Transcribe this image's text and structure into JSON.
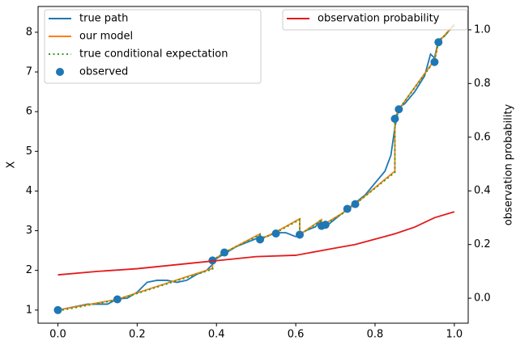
{
  "chart_data": {
    "type": "line",
    "ylabel": "X",
    "y2label": "observation probability",
    "xlim": [
      -0.05,
      1.035
    ],
    "ylim": [
      0.67,
      8.65
    ],
    "y2lim": [
      -0.093,
      1.087
    ],
    "xticks": [
      {
        "value": 0,
        "label": "0.0"
      },
      {
        "value": 0.2,
        "label": "0.2"
      },
      {
        "value": 0.4,
        "label": "0.4"
      },
      {
        "value": 0.6,
        "label": "0.6"
      },
      {
        "value": 0.8,
        "label": "0.8"
      },
      {
        "value": 1,
        "label": "1.0"
      }
    ],
    "yticks": [
      1,
      2,
      3,
      4,
      5,
      6,
      7,
      8
    ],
    "y2ticks": [
      {
        "value": 0,
        "label": "0.0"
      },
      {
        "value": 0.2,
        "label": "0.2"
      },
      {
        "value": 0.4,
        "label": "0.4"
      },
      {
        "value": 0.6,
        "label": "0.6"
      },
      {
        "value": 0.8,
        "label": "0.8"
      },
      {
        "value": 1,
        "label": "1.0"
      }
    ],
    "legend": "upper left",
    "legend2": "upper right",
    "series": [
      {
        "name": "true path",
        "color": "#1f77b4",
        "kind": "line",
        "style": "solid",
        "x": [
          0,
          0.025,
          0.05,
          0.075,
          0.1,
          0.125,
          0.15,
          0.175,
          0.2,
          0.225,
          0.25,
          0.275,
          0.3,
          0.325,
          0.35,
          0.375,
          0.39,
          0.4,
          0.425,
          0.45,
          0.475,
          0.5,
          0.525,
          0.55,
          0.575,
          0.6,
          0.625,
          0.65,
          0.66,
          0.675,
          0.7,
          0.725,
          0.75,
          0.775,
          0.8,
          0.825,
          0.84,
          0.85,
          0.86,
          0.875,
          0.9,
          0.925,
          0.94,
          0.95,
          0.96,
          0.975,
          1.0
        ],
        "values": [
          1.0,
          1.05,
          1.1,
          1.15,
          1.15,
          1.15,
          1.28,
          1.3,
          1.45,
          1.7,
          1.75,
          1.75,
          1.7,
          1.75,
          1.9,
          2.0,
          2.15,
          2.3,
          2.45,
          2.6,
          2.7,
          2.8,
          2.85,
          2.95,
          2.95,
          2.85,
          3.0,
          3.1,
          3.25,
          3.1,
          3.3,
          3.5,
          3.7,
          3.9,
          4.2,
          4.5,
          4.9,
          5.6,
          6.1,
          6.2,
          6.5,
          6.9,
          7.45,
          7.35,
          7.8,
          7.9,
          8.2
        ]
      },
      {
        "name": "our model",
        "color": "#ff7f0e",
        "kind": "line",
        "style": "solid",
        "x": [
          0,
          0.15,
          0.39,
          0.39,
          0.42,
          0.51,
          0.51,
          0.55,
          0.61,
          0.61,
          0.665,
          0.665,
          0.73,
          0.75,
          0.85,
          0.85,
          0.86,
          0.95,
          0.96,
          1.0
        ],
        "values": [
          1.0,
          1.27,
          2.05,
          2.25,
          2.45,
          2.92,
          2.78,
          2.97,
          3.3,
          2.9,
          3.28,
          3.12,
          3.52,
          3.67,
          4.5,
          5.82,
          6.06,
          7.3,
          7.75,
          8.2
        ]
      },
      {
        "name": "true conditional expectation",
        "color": "#2ca02c",
        "kind": "line",
        "style": "dotted",
        "x": [
          0,
          0.15,
          0.39,
          0.39,
          0.42,
          0.51,
          0.51,
          0.55,
          0.61,
          0.61,
          0.665,
          0.665,
          0.73,
          0.75,
          0.85,
          0.85,
          0.86,
          0.95,
          0.96,
          1.0
        ],
        "values": [
          0.98,
          1.26,
          2.03,
          2.25,
          2.45,
          2.9,
          2.78,
          2.95,
          3.28,
          2.9,
          3.26,
          3.12,
          3.5,
          3.67,
          4.47,
          5.82,
          6.06,
          7.28,
          7.75,
          8.18
        ]
      },
      {
        "name": "observed",
        "color": "#1f77b4",
        "kind": "scatter",
        "x": [
          0,
          0.15,
          0.39,
          0.42,
          0.51,
          0.55,
          0.61,
          0.665,
          0.675,
          0.73,
          0.75,
          0.85,
          0.86,
          0.95,
          0.96
        ],
        "values": [
          1.0,
          1.27,
          2.25,
          2.45,
          2.78,
          2.93,
          2.9,
          3.12,
          3.15,
          3.55,
          3.67,
          5.82,
          6.06,
          7.25,
          7.75
        ]
      },
      {
        "name": "observation probability",
        "color": "#e31a1c",
        "kind": "line",
        "style": "solid",
        "axis": "y2",
        "x": [
          0,
          0.1,
          0.2,
          0.3,
          0.4,
          0.5,
          0.6,
          0.7,
          0.75,
          0.8,
          0.85,
          0.9,
          0.95,
          1.0
        ],
        "values": [
          0.087,
          0.1,
          0.11,
          0.125,
          0.14,
          0.155,
          0.16,
          0.187,
          0.2,
          0.22,
          0.24,
          0.265,
          0.3,
          0.322
        ]
      }
    ]
  }
}
